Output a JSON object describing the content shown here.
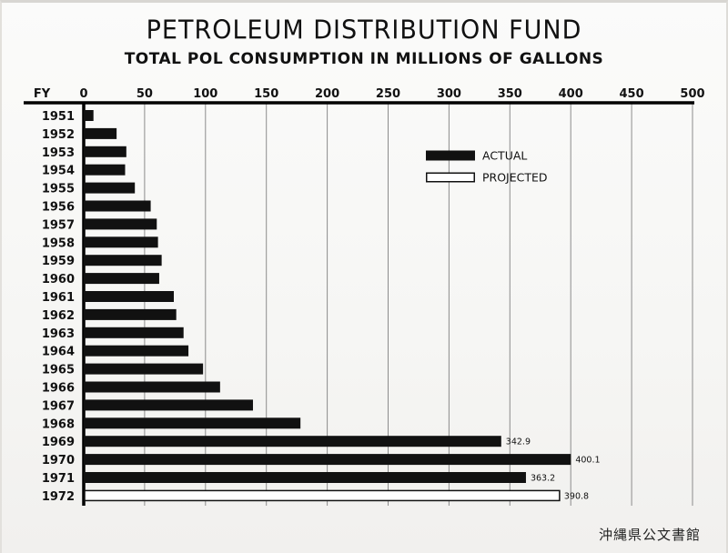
{
  "title": "PETROLEUM DISTRIBUTION FUND",
  "subtitle": "TOTAL POL CONSUMPTION IN MILLIONS OF GALLONS",
  "archive_mark": "沖縄県公文書館",
  "chart_data": {
    "type": "bar",
    "orientation": "horizontal",
    "title": "PETROLEUM DISTRIBUTION FUND",
    "subtitle": "TOTAL POL CONSUMPTION IN MILLIONS OF GALLONS",
    "category_axis_label": "FY",
    "categories": [
      "1951",
      "1952",
      "1953",
      "1954",
      "1955",
      "1956",
      "1957",
      "1958",
      "1959",
      "1960",
      "1961",
      "1962",
      "1963",
      "1964",
      "1965",
      "1966",
      "1967",
      "1968",
      "1969",
      "1970",
      "1971",
      "1972"
    ],
    "values": [
      8,
      27,
      35,
      34,
      42,
      55,
      60,
      61,
      64,
      62,
      74,
      76,
      82,
      86,
      98,
      112,
      139,
      178,
      342.9,
      400.1,
      363.2,
      390.8
    ],
    "bar_kind": [
      "actual",
      "actual",
      "actual",
      "actual",
      "actual",
      "actual",
      "actual",
      "actual",
      "actual",
      "actual",
      "actual",
      "actual",
      "actual",
      "actual",
      "actual",
      "actual",
      "actual",
      "actual",
      "actual",
      "actual",
      "actual",
      "projected"
    ],
    "data_labels": [
      "",
      "",
      "",
      "",
      "",
      "",
      "",
      "",
      "",
      "",
      "",
      "",
      "",
      "",
      "",
      "",
      "",
      "",
      "342.9",
      "400.1",
      "363.2",
      "390.8"
    ],
    "xlim": [
      0,
      500
    ],
    "x_ticks": [
      0,
      50,
      100,
      150,
      200,
      250,
      300,
      350,
      400,
      450,
      500
    ],
    "grid": true,
    "legend": [
      {
        "name": "ACTUAL",
        "style": "filled"
      },
      {
        "name": "PROJECTED",
        "style": "outline"
      }
    ],
    "legend_position": "top-right",
    "colors": {
      "bar": "#111111",
      "grid": "#8c8c8c",
      "axis": "#000000"
    }
  }
}
